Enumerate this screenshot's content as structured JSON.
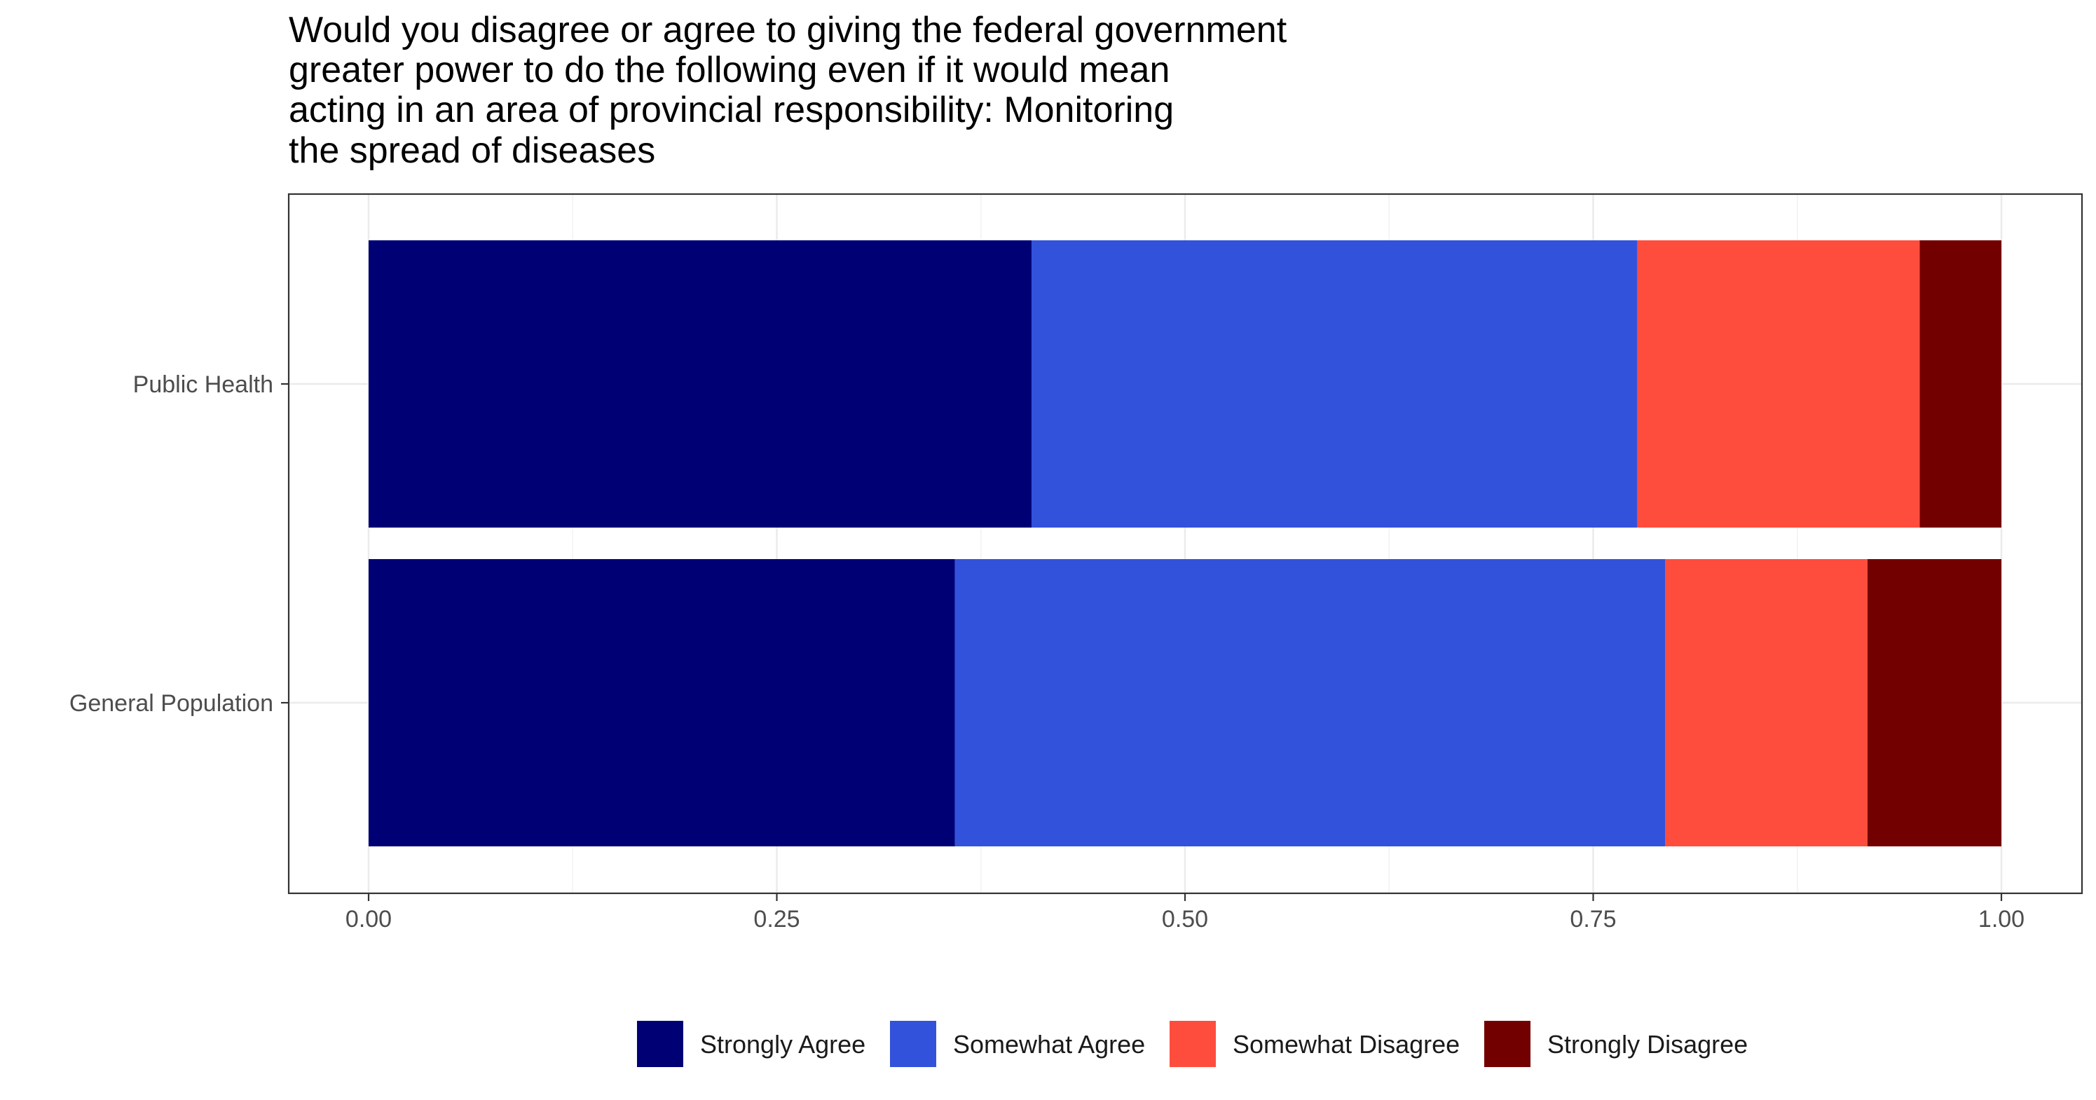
{
  "chart_data": {
    "type": "bar",
    "orientation": "horizontal",
    "stacked": true,
    "title_lines": [
      "Would you disagree or agree to giving the federal government",
      "greater power to do the following even if it would mean",
      "acting in an area of provincial responsibility: Monitoring",
      "the spread of diseases"
    ],
    "categories": [
      "Public Health",
      "General Population"
    ],
    "series": [
      {
        "name": "Strongly Agree",
        "color": "#000075",
        "values": [
          0.406,
          0.359
        ]
      },
      {
        "name": "Somewhat Agree",
        "color": "#3352db",
        "values": [
          0.371,
          0.435
        ]
      },
      {
        "name": "Somewhat Disagree",
        "color": "#ff4d3d",
        "values": [
          0.173,
          0.124
        ]
      },
      {
        "name": "Strongly Disagree",
        "color": "#730000",
        "values": [
          0.05,
          0.082
        ]
      }
    ],
    "xlim": [
      0,
      1
    ],
    "x_ticks": [
      "0.00",
      "0.25",
      "0.50",
      "0.75",
      "1.00"
    ],
    "x_tick_values": [
      0,
      0.25,
      0.5,
      0.75,
      1
    ],
    "grid": true,
    "legend_position": "bottom"
  }
}
